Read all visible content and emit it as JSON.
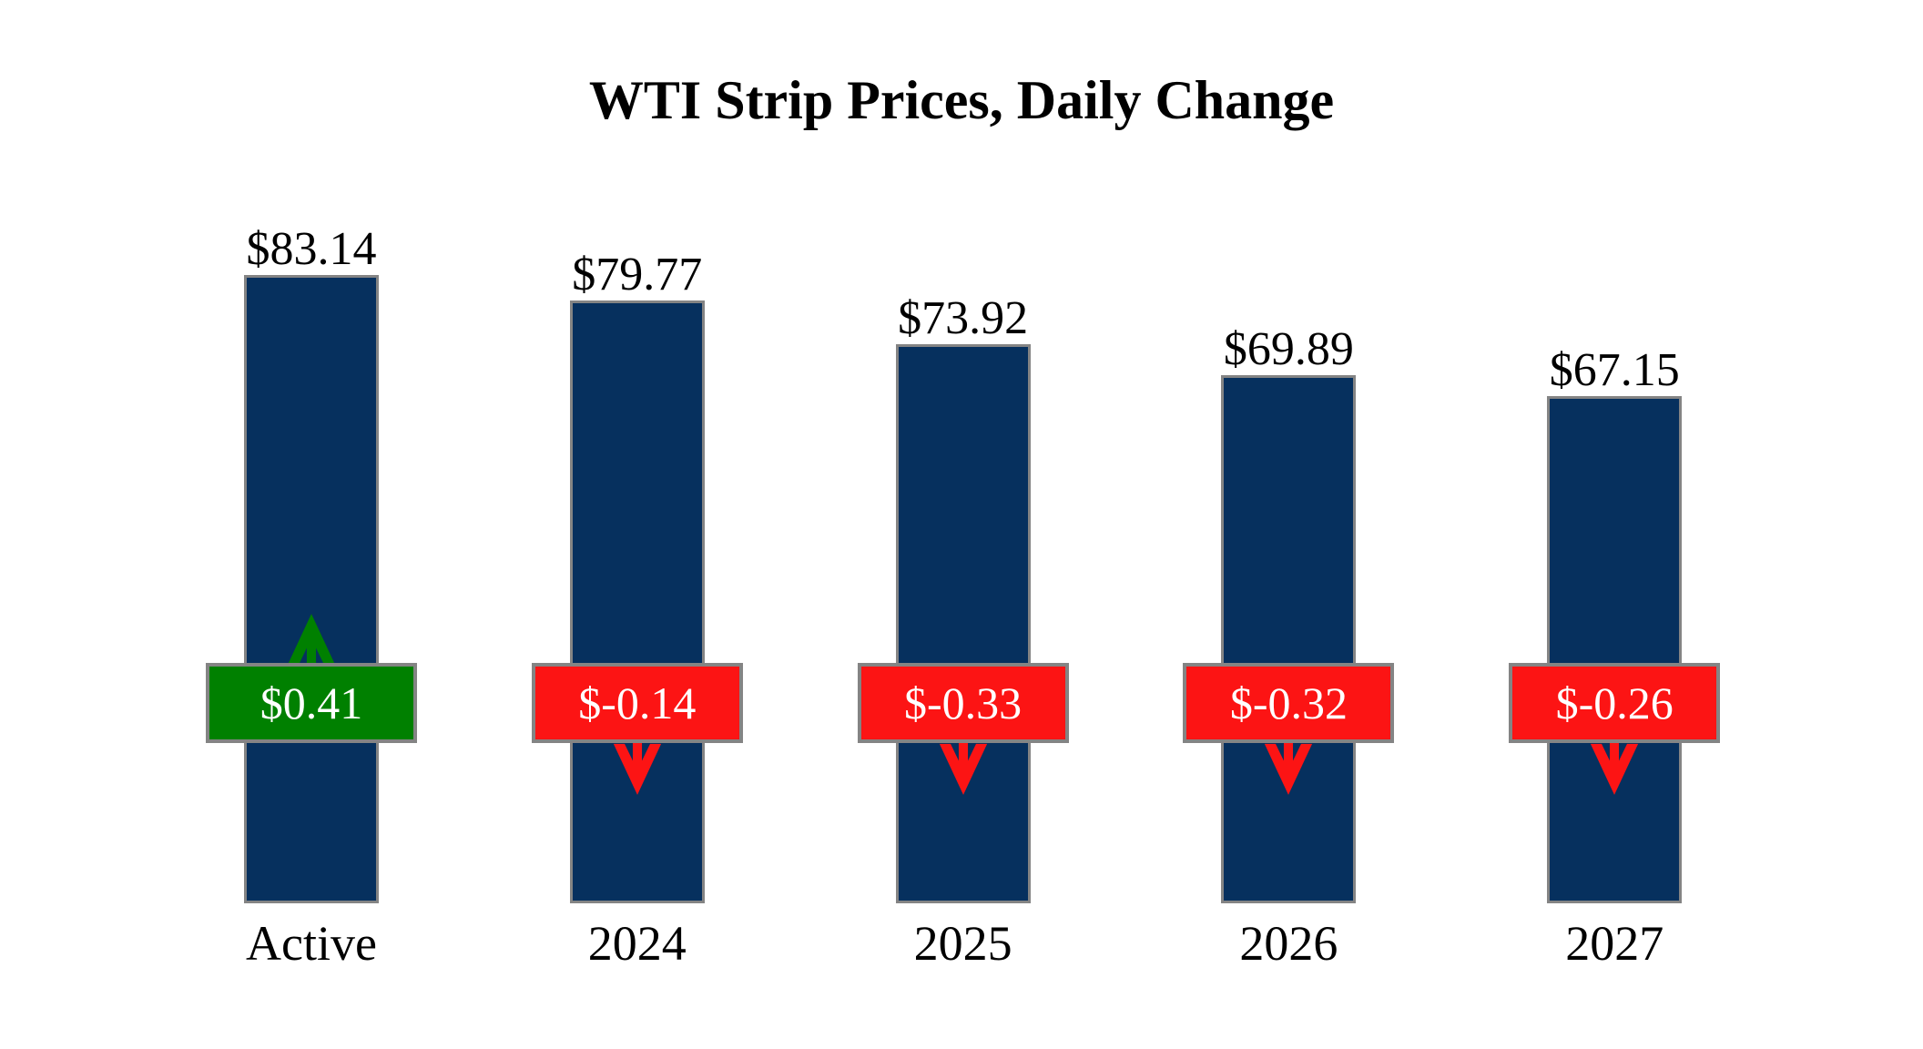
{
  "title": "WTI Strip Prices, Daily Change",
  "colors": {
    "background": "#ffffff",
    "bar": "#06305E",
    "bar_border": "#848484",
    "badge_border": "#848484",
    "positive": "#008000",
    "negative": "#FC1414",
    "label_text": "#000000",
    "badge_text": "#ffffff"
  },
  "chart_data": {
    "type": "bar",
    "title": "WTI Strip Prices, Daily Change",
    "categories": [
      "Active",
      "2024",
      "2025",
      "2026",
      "2027"
    ],
    "series": [
      {
        "name": "Strip Price",
        "values": [
          83.14,
          79.77,
          73.92,
          69.89,
          67.15
        ],
        "labels": [
          "$83.14",
          "$79.77",
          "$73.92",
          "$69.89",
          "$67.15"
        ]
      },
      {
        "name": "Daily Change",
        "values": [
          0.41,
          -0.14,
          -0.33,
          -0.32,
          -0.26
        ],
        "labels": [
          "$0.41",
          "$-0.14",
          "$-0.33",
          "$-0.32",
          "$-0.26"
        ]
      }
    ],
    "ylim": [
      0,
      83.14
    ],
    "grid": false,
    "legend": false,
    "axes_shown": false
  }
}
